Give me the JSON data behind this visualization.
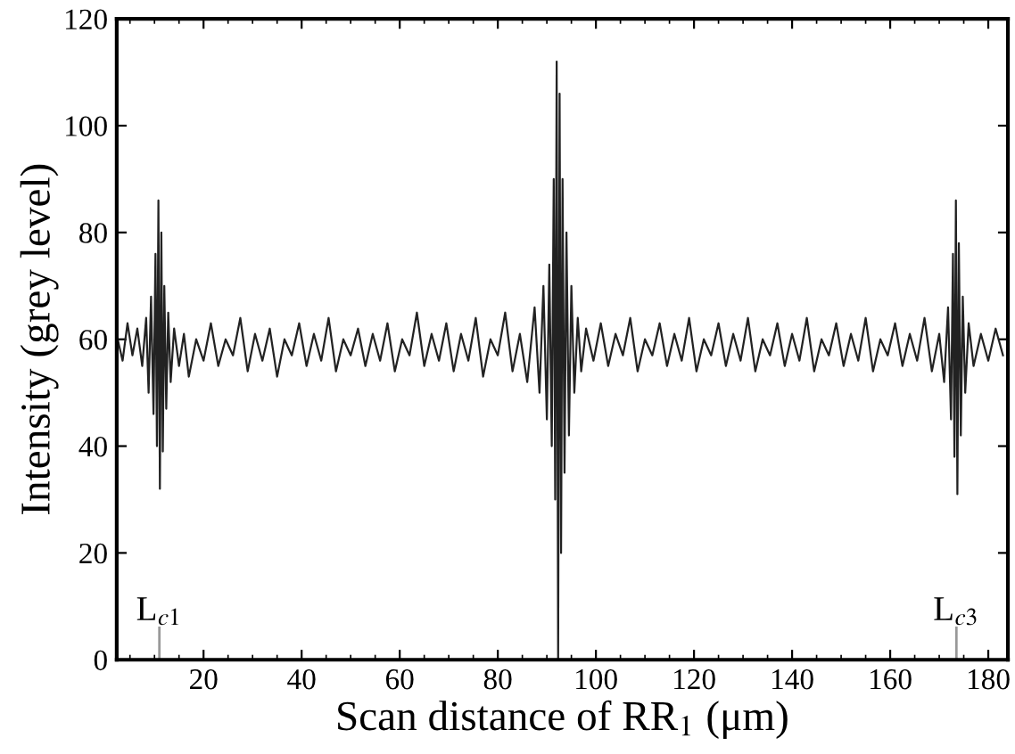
{
  "chart_data": {
    "type": "line",
    "xlabel": "Scan distance of RR$_{1}$ (μm)",
    "ylabel": "Intensity (grey level)",
    "x": [
      2.5,
      3.5,
      4.5,
      5.5,
      6.5,
      7.5,
      8.3,
      8.8,
      9.3,
      9.8,
      10.2,
      10.5,
      10.8,
      11.1,
      11.4,
      11.7,
      12.0,
      12.4,
      12.8,
      13.3,
      14,
      15,
      16,
      17,
      18.5,
      20,
      21.5,
      23,
      24.5,
      26,
      27.5,
      29,
      30.5,
      32,
      33.5,
      35,
      36.5,
      38,
      39.5,
      41,
      42.5,
      44,
      45.5,
      47,
      48.5,
      50,
      51.5,
      53,
      54.5,
      56,
      57.5,
      59,
      60.5,
      62,
      63.5,
      65,
      66.5,
      68,
      69.5,
      71,
      72.5,
      74,
      75.5,
      77,
      78.5,
      80,
      81.5,
      83,
      84.5,
      86,
      87.5,
      88.5,
      89.3,
      90,
      90.5,
      91,
      91.4,
      91.7,
      92.0,
      92.3,
      92.6,
      92.9,
      93.2,
      93.6,
      94,
      94.5,
      95,
      95.6,
      96.3,
      97,
      98,
      99.5,
      101,
      102.5,
      104,
      105.5,
      107,
      108.5,
      110,
      111.5,
      113,
      114.5,
      116,
      117.5,
      119,
      120.5,
      122,
      123.5,
      125,
      126.5,
      128,
      129.5,
      131,
      132.5,
      134,
      135.5,
      137,
      138.5,
      140,
      141.5,
      143,
      144.5,
      146,
      147.5,
      149,
      150.5,
      152,
      153.5,
      155,
      156.5,
      158,
      159.5,
      161,
      162.5,
      164,
      165.5,
      167,
      168.5,
      170,
      171,
      171.8,
      172.4,
      172.8,
      173.1,
      173.4,
      173.7,
      174.0,
      174.4,
      174.8,
      175.3,
      176,
      177,
      178.5,
      180,
      181.5,
      183
    ],
    "series": [
      {
        "color": "#222222",
        "values": [
          60,
          56,
          63,
          57,
          62,
          55,
          64,
          50,
          68,
          46,
          76,
          40,
          86,
          32,
          80,
          39,
          70,
          47,
          65,
          52,
          62,
          55,
          61,
          53,
          60,
          56,
          63,
          55,
          60,
          57,
          64,
          54,
          61,
          56,
          62,
          53,
          60,
          57,
          63,
          55,
          61,
          56,
          64,
          54,
          60,
          57,
          62,
          55,
          61,
          56,
          63,
          54,
          60,
          57,
          65,
          55,
          61,
          56,
          63,
          54,
          61,
          56,
          64,
          53,
          60,
          57,
          65,
          54,
          61,
          52,
          66,
          50,
          70,
          45,
          74,
          40,
          90,
          30,
          112,
          0,
          106,
          20,
          90,
          35,
          80,
          42,
          70,
          50,
          64,
          54,
          62,
          56,
          63,
          55,
          61,
          57,
          64,
          54,
          60,
          57,
          63,
          55,
          61,
          56,
          64,
          54,
          60,
          57,
          63,
          55,
          61,
          56,
          64,
          54,
          60,
          57,
          63,
          55,
          61,
          56,
          64,
          54,
          60,
          57,
          63,
          55,
          61,
          56,
          64,
          54,
          60,
          57,
          63,
          55,
          61,
          56,
          64,
          54,
          61,
          52,
          66,
          45,
          76,
          38,
          86,
          31,
          78,
          42,
          68,
          50,
          63,
          55,
          61,
          56,
          62,
          57
        ]
      }
    ],
    "xlim": [
      2.3,
      184
    ],
    "xticks": [
      20,
      40,
      60,
      80,
      100,
      120,
      140,
      160,
      180
    ],
    "ylim": [
      0,
      120
    ],
    "yticks": [
      0,
      20,
      40,
      60,
      80,
      100,
      120
    ],
    "grid": false,
    "legend": false,
    "marker": "none",
    "line_style": "solid",
    "ref_lines": [
      {
        "axis": "x",
        "value": 11,
        "label": "L$_{c1}$",
        "color": "#999999"
      },
      {
        "axis": "x",
        "value": 173.5,
        "label": "L$_{c3}$",
        "color": "#999999"
      }
    ]
  }
}
